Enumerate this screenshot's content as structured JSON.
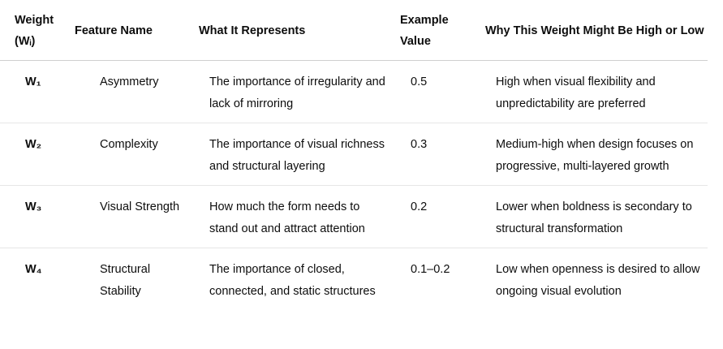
{
  "table": {
    "headers": [
      "Weight (Wᵢ)",
      "Feature Name",
      "What It Represents",
      "Example Value",
      "Why This Weight Might Be High or Low"
    ],
    "rows": [
      {
        "weight": "W₁",
        "feature": "Asymmetry",
        "represents": "The importance of irregularity and lack of mirroring",
        "example": "0.5",
        "why": "High when visual flexibility and unpredictability are preferred"
      },
      {
        "weight": "W₂",
        "feature": "Complexity",
        "represents": "The importance of visual richness and structural layering",
        "example": "0.3",
        "why": "Medium-high when design focuses on progressive, multi-layered growth"
      },
      {
        "weight": "W₃",
        "feature": "Visual Strength",
        "represents": "How much the form needs to stand out and attract attention",
        "example": "0.2",
        "why": "Lower when boldness is secondary to structural transformation"
      },
      {
        "weight": "W₄",
        "feature": "Structural Stability",
        "represents": "The importance of closed, connected, and static structures",
        "example": "0.1–0.2",
        "why": "Low when openness is desired to allow ongoing visual evolution"
      }
    ]
  }
}
